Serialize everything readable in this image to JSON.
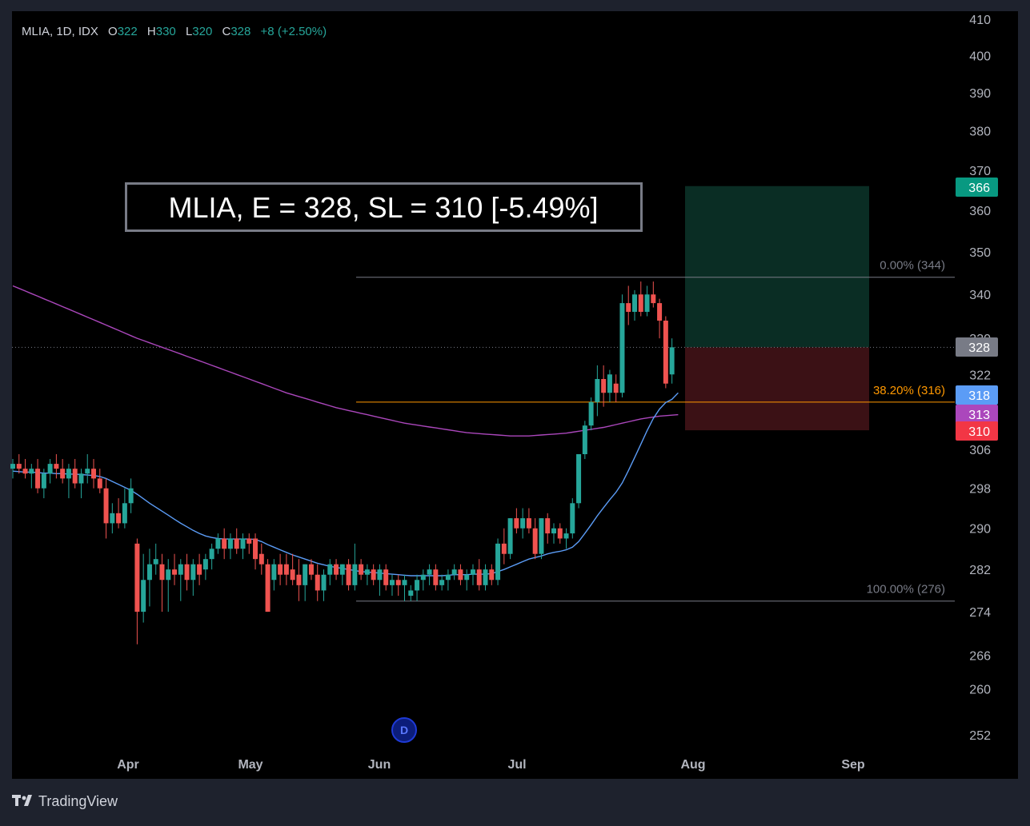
{
  "legend": {
    "symbol": "MLIA, 1D, IDX",
    "o_label": "O",
    "o_value": "322",
    "h_label": "H",
    "h_value": "330",
    "l_label": "L",
    "l_value": "320",
    "c_label": "C",
    "c_value": "328",
    "change": "+8 (+2.50%)"
  },
  "annotation": "MLIA, E = 328, SL = 310 [-5.49%]",
  "branding": {
    "name": "TradingView"
  },
  "colors": {
    "up": "#26a69a",
    "down": "#ef5350",
    "background": "#000000",
    "sma_short": "#5b9cf6",
    "sma_long": "#ab47bc",
    "fib_382": "#ff9800",
    "target_zone": "#0a2d24",
    "stop_zone": "#3b1115"
  },
  "chart_data": {
    "type": "candlestick",
    "title": "",
    "x_ticks": [
      "Apr",
      "May",
      "Jun",
      "Jul",
      "Aug",
      "Sep"
    ],
    "y_ticks": [
      410,
      400,
      390,
      380,
      370,
      360,
      350,
      340,
      330,
      322,
      306,
      298,
      290,
      282,
      274,
      266,
      260,
      252
    ],
    "y_range": [
      249,
      413
    ],
    "scale": "log",
    "candles": [
      {
        "o": 302,
        "h": 304,
        "l": 300,
        "c": 303
      },
      {
        "o": 303,
        "h": 305,
        "l": 301,
        "c": 302
      },
      {
        "o": 302,
        "h": 304,
        "l": 300,
        "c": 301
      },
      {
        "o": 301,
        "h": 303,
        "l": 298,
        "c": 302
      },
      {
        "o": 302,
        "h": 304,
        "l": 297,
        "c": 298
      },
      {
        "o": 298,
        "h": 302,
        "l": 296,
        "c": 301
      },
      {
        "o": 301,
        "h": 304,
        "l": 299,
        "c": 303
      },
      {
        "o": 303,
        "h": 305,
        "l": 300,
        "c": 302
      },
      {
        "o": 302,
        "h": 304,
        "l": 299,
        "c": 300
      },
      {
        "o": 300,
        "h": 303,
        "l": 296,
        "c": 302
      },
      {
        "o": 302,
        "h": 304,
        "l": 298,
        "c": 299
      },
      {
        "o": 299,
        "h": 302,
        "l": 296,
        "c": 301
      },
      {
        "o": 301,
        "h": 305,
        "l": 299,
        "c": 302
      },
      {
        "o": 302,
        "h": 304,
        "l": 298,
        "c": 300
      },
      {
        "o": 300,
        "h": 302,
        "l": 297,
        "c": 298
      },
      {
        "o": 298,
        "h": 300,
        "l": 288,
        "c": 291
      },
      {
        "o": 291,
        "h": 295,
        "l": 289,
        "c": 293
      },
      {
        "o": 293,
        "h": 296,
        "l": 290,
        "c": 291
      },
      {
        "o": 291,
        "h": 298,
        "l": 290,
        "c": 295
      },
      {
        "o": 295,
        "h": 300,
        "l": 293,
        "c": 298
      },
      {
        "o": 287,
        "h": 288,
        "l": 268,
        "c": 274
      },
      {
        "o": 274,
        "h": 285,
        "l": 272,
        "c": 280
      },
      {
        "o": 280,
        "h": 286,
        "l": 275,
        "c": 283
      },
      {
        "o": 283,
        "h": 287,
        "l": 281,
        "c": 284
      },
      {
        "o": 283,
        "h": 285,
        "l": 274,
        "c": 280
      },
      {
        "o": 280,
        "h": 284,
        "l": 274,
        "c": 282
      },
      {
        "o": 282,
        "h": 285,
        "l": 279,
        "c": 281
      },
      {
        "o": 281,
        "h": 284,
        "l": 276,
        "c": 283
      },
      {
        "o": 283,
        "h": 285,
        "l": 278,
        "c": 280
      },
      {
        "o": 280,
        "h": 284,
        "l": 277,
        "c": 283
      },
      {
        "o": 283,
        "h": 285,
        "l": 279,
        "c": 281
      },
      {
        "o": 282,
        "h": 285,
        "l": 280,
        "c": 284
      },
      {
        "o": 284,
        "h": 287,
        "l": 282,
        "c": 286
      },
      {
        "o": 286,
        "h": 289,
        "l": 285,
        "c": 288
      },
      {
        "o": 288,
        "h": 290,
        "l": 284,
        "c": 286
      },
      {
        "o": 286,
        "h": 289,
        "l": 284,
        "c": 288
      },
      {
        "o": 288,
        "h": 290,
        "l": 285,
        "c": 286
      },
      {
        "o": 286,
        "h": 289,
        "l": 284,
        "c": 288
      },
      {
        "o": 288,
        "h": 289,
        "l": 285,
        "c": 287
      },
      {
        "o": 288,
        "h": 289,
        "l": 282,
        "c": 284
      },
      {
        "o": 285,
        "h": 287,
        "l": 281,
        "c": 283
      },
      {
        "o": 283,
        "h": 284,
        "l": 274,
        "c": 274
      },
      {
        "o": 280,
        "h": 284,
        "l": 278,
        "c": 283
      },
      {
        "o": 283,
        "h": 285,
        "l": 279,
        "c": 281
      },
      {
        "o": 283,
        "h": 285,
        "l": 279,
        "c": 281
      },
      {
        "o": 282,
        "h": 285,
        "l": 279,
        "c": 280
      },
      {
        "o": 281,
        "h": 284,
        "l": 276,
        "c": 279
      },
      {
        "o": 279,
        "h": 283,
        "l": 276,
        "c": 283
      },
      {
        "o": 283,
        "h": 284,
        "l": 280,
        "c": 281
      },
      {
        "o": 281,
        "h": 283,
        "l": 276,
        "c": 278
      },
      {
        "o": 278,
        "h": 282,
        "l": 276,
        "c": 281
      },
      {
        "o": 281,
        "h": 284,
        "l": 279,
        "c": 283
      },
      {
        "o": 283,
        "h": 284,
        "l": 280,
        "c": 281
      },
      {
        "o": 281,
        "h": 283,
        "l": 279,
        "c": 283
      },
      {
        "o": 283,
        "h": 284,
        "l": 278,
        "c": 279
      },
      {
        "o": 279,
        "h": 287,
        "l": 278,
        "c": 283
      },
      {
        "o": 283,
        "h": 284,
        "l": 280,
        "c": 281
      },
      {
        "o": 281,
        "h": 283,
        "l": 279,
        "c": 282
      },
      {
        "o": 282,
        "h": 283,
        "l": 279,
        "c": 280
      },
      {
        "o": 280,
        "h": 283,
        "l": 277,
        "c": 282
      },
      {
        "o": 282,
        "h": 283,
        "l": 278,
        "c": 279
      },
      {
        "o": 279,
        "h": 281,
        "l": 277,
        "c": 280
      },
      {
        "o": 280,
        "h": 281,
        "l": 277,
        "c": 279
      },
      {
        "o": 279,
        "h": 281,
        "l": 276,
        "c": 280
      },
      {
        "o": 277,
        "h": 279,
        "l": 276,
        "c": 278
      },
      {
        "o": 278,
        "h": 281,
        "l": 276,
        "c": 280
      },
      {
        "o": 280,
        "h": 282,
        "l": 278,
        "c": 281
      },
      {
        "o": 281,
        "h": 283,
        "l": 279,
        "c": 282
      },
      {
        "o": 282,
        "h": 283,
        "l": 278,
        "c": 279
      },
      {
        "o": 279,
        "h": 281,
        "l": 278,
        "c": 280
      },
      {
        "o": 280,
        "h": 282,
        "l": 278,
        "c": 281
      },
      {
        "o": 281,
        "h": 283,
        "l": 280,
        "c": 282
      },
      {
        "o": 282,
        "h": 283,
        "l": 279,
        "c": 280
      },
      {
        "o": 280,
        "h": 282,
        "l": 278,
        "c": 281
      },
      {
        "o": 281,
        "h": 283,
        "l": 279,
        "c": 282
      },
      {
        "o": 282,
        "h": 284,
        "l": 278,
        "c": 279
      },
      {
        "o": 279,
        "h": 283,
        "l": 278,
        "c": 282
      },
      {
        "o": 282,
        "h": 283,
        "l": 279,
        "c": 280
      },
      {
        "o": 280,
        "h": 288,
        "l": 279,
        "c": 287
      },
      {
        "o": 287,
        "h": 290,
        "l": 283,
        "c": 285
      },
      {
        "o": 285,
        "h": 292,
        "l": 284,
        "c": 292
      },
      {
        "o": 292,
        "h": 294,
        "l": 289,
        "c": 290
      },
      {
        "o": 290,
        "h": 294,
        "l": 288,
        "c": 292
      },
      {
        "o": 292,
        "h": 294,
        "l": 289,
        "c": 290
      },
      {
        "o": 290,
        "h": 292,
        "l": 284,
        "c": 285
      },
      {
        "o": 285,
        "h": 292,
        "l": 284,
        "c": 292
      },
      {
        "o": 292,
        "h": 293,
        "l": 287,
        "c": 289
      },
      {
        "o": 289,
        "h": 291,
        "l": 287,
        "c": 290
      },
      {
        "o": 290,
        "h": 291,
        "l": 287,
        "c": 288
      },
      {
        "o": 288,
        "h": 290,
        "l": 286,
        "c": 289
      },
      {
        "o": 289,
        "h": 296,
        "l": 288,
        "c": 295
      },
      {
        "o": 295,
        "h": 305,
        "l": 294,
        "c": 305
      },
      {
        "o": 305,
        "h": 312,
        "l": 304,
        "c": 311
      },
      {
        "o": 311,
        "h": 317,
        "l": 310,
        "c": 316
      },
      {
        "o": 316,
        "h": 324,
        "l": 313,
        "c": 321
      },
      {
        "o": 321,
        "h": 324,
        "l": 315,
        "c": 318
      },
      {
        "o": 318,
        "h": 323,
        "l": 316,
        "c": 322
      },
      {
        "o": 320,
        "h": 322,
        "l": 316,
        "c": 318
      },
      {
        "o": 318,
        "h": 340,
        "l": 317,
        "c": 338
      },
      {
        "o": 338,
        "h": 342,
        "l": 333,
        "c": 336
      },
      {
        "o": 336,
        "h": 341,
        "l": 334,
        "c": 340
      },
      {
        "o": 340,
        "h": 343,
        "l": 335,
        "c": 336
      },
      {
        "o": 336,
        "h": 342,
        "l": 335,
        "c": 340
      },
      {
        "o": 340,
        "h": 343,
        "l": 337,
        "c": 338
      },
      {
        "o": 338,
        "h": 339,
        "l": 330,
        "c": 334
      },
      {
        "o": 334,
        "h": 335,
        "l": 319,
        "c": 320
      },
      {
        "o": 322,
        "h": 330,
        "l": 320,
        "c": 328
      }
    ],
    "sma_short_values": [
      301.5,
      301.4,
      301.3,
      301.3,
      301.2,
      301.1,
      301.1,
      301.0,
      301.0,
      300.9,
      300.9,
      300.8,
      300.7,
      300.6,
      300.4,
      300.0,
      299.4,
      298.8,
      298.2,
      297.6,
      296.8,
      295.9,
      295.0,
      294.2,
      293.4,
      292.6,
      291.8,
      291.0,
      290.3,
      289.6,
      289.0,
      288.5,
      288.2,
      288.0,
      287.9,
      287.9,
      287.9,
      287.9,
      287.9,
      287.8,
      287.4,
      286.8,
      286.3,
      285.8,
      285.3,
      284.8,
      284.4,
      284.0,
      283.6,
      283.2,
      282.9,
      282.6,
      282.4,
      282.2,
      282.0,
      281.8,
      281.6,
      281.5,
      281.4,
      281.3,
      281.2,
      281.1,
      281.0,
      280.9,
      280.8,
      280.8,
      280.8,
      280.8,
      280.8,
      280.8,
      280.9,
      281.0,
      281.0,
      281.0,
      281.1,
      281.1,
      281.1,
      281.2,
      281.6,
      282.0,
      282.5,
      283.0,
      283.5,
      284.0,
      284.3,
      284.6,
      285.0,
      285.3,
      285.5,
      285.8,
      286.3,
      287.4,
      289.0,
      290.7,
      292.5,
      294.1,
      295.7,
      297.2,
      299.1,
      301.6,
      304.3,
      307.1,
      309.9,
      312.5,
      314.5,
      315.9,
      316.6,
      318.0
    ],
    "sma_long_values": [
      342.0,
      341.4,
      340.8,
      340.2,
      339.6,
      339.0,
      338.4,
      337.8,
      337.2,
      336.6,
      336.0,
      335.4,
      334.8,
      334.2,
      333.6,
      333.0,
      332.4,
      331.8,
      331.2,
      330.6,
      330.0,
      329.5,
      329.0,
      328.5,
      328.0,
      327.5,
      327.0,
      326.5,
      326.0,
      325.5,
      325.0,
      324.5,
      324.0,
      323.5,
      323.0,
      322.5,
      322.0,
      321.5,
      321.0,
      320.5,
      320.0,
      319.5,
      319.0,
      318.5,
      318.0,
      317.6,
      317.2,
      316.8,
      316.4,
      316.0,
      315.6,
      315.2,
      314.8,
      314.5,
      314.2,
      313.9,
      313.6,
      313.3,
      313.0,
      312.7,
      312.4,
      312.1,
      311.8,
      311.5,
      311.3,
      311.1,
      310.9,
      310.7,
      310.5,
      310.3,
      310.1,
      309.9,
      309.7,
      309.5,
      309.4,
      309.3,
      309.2,
      309.1,
      309.0,
      308.9,
      308.8,
      308.8,
      308.8,
      308.8,
      308.9,
      309.0,
      309.1,
      309.2,
      309.3,
      309.4,
      309.6,
      309.8,
      310.0,
      310.2,
      310.4,
      310.6,
      310.9,
      311.2,
      311.5,
      311.8,
      312.1,
      312.4,
      312.6,
      312.8,
      313.0,
      313.1,
      313.2,
      313.3
    ],
    "fib_levels": [
      {
        "label": "0.00% (344)",
        "value": 344
      },
      {
        "label": "38.20% (316)",
        "value": 316
      },
      {
        "label": "100.00% (276)",
        "value": 276
      }
    ],
    "position": {
      "entry": 328,
      "target": 366,
      "stop": 310
    },
    "price_tags": [
      {
        "label": "366",
        "value": 366,
        "color": "#089981"
      },
      {
        "label": "328",
        "value": 328,
        "color": "#787b86"
      },
      {
        "label": "318",
        "value": 318,
        "color": "#5b9cf6"
      },
      {
        "label": "313",
        "value": 313,
        "color": "#ab47bc"
      },
      {
        "label": "310",
        "value": 310,
        "color": "#f23645"
      }
    ],
    "event_marker": "D"
  }
}
